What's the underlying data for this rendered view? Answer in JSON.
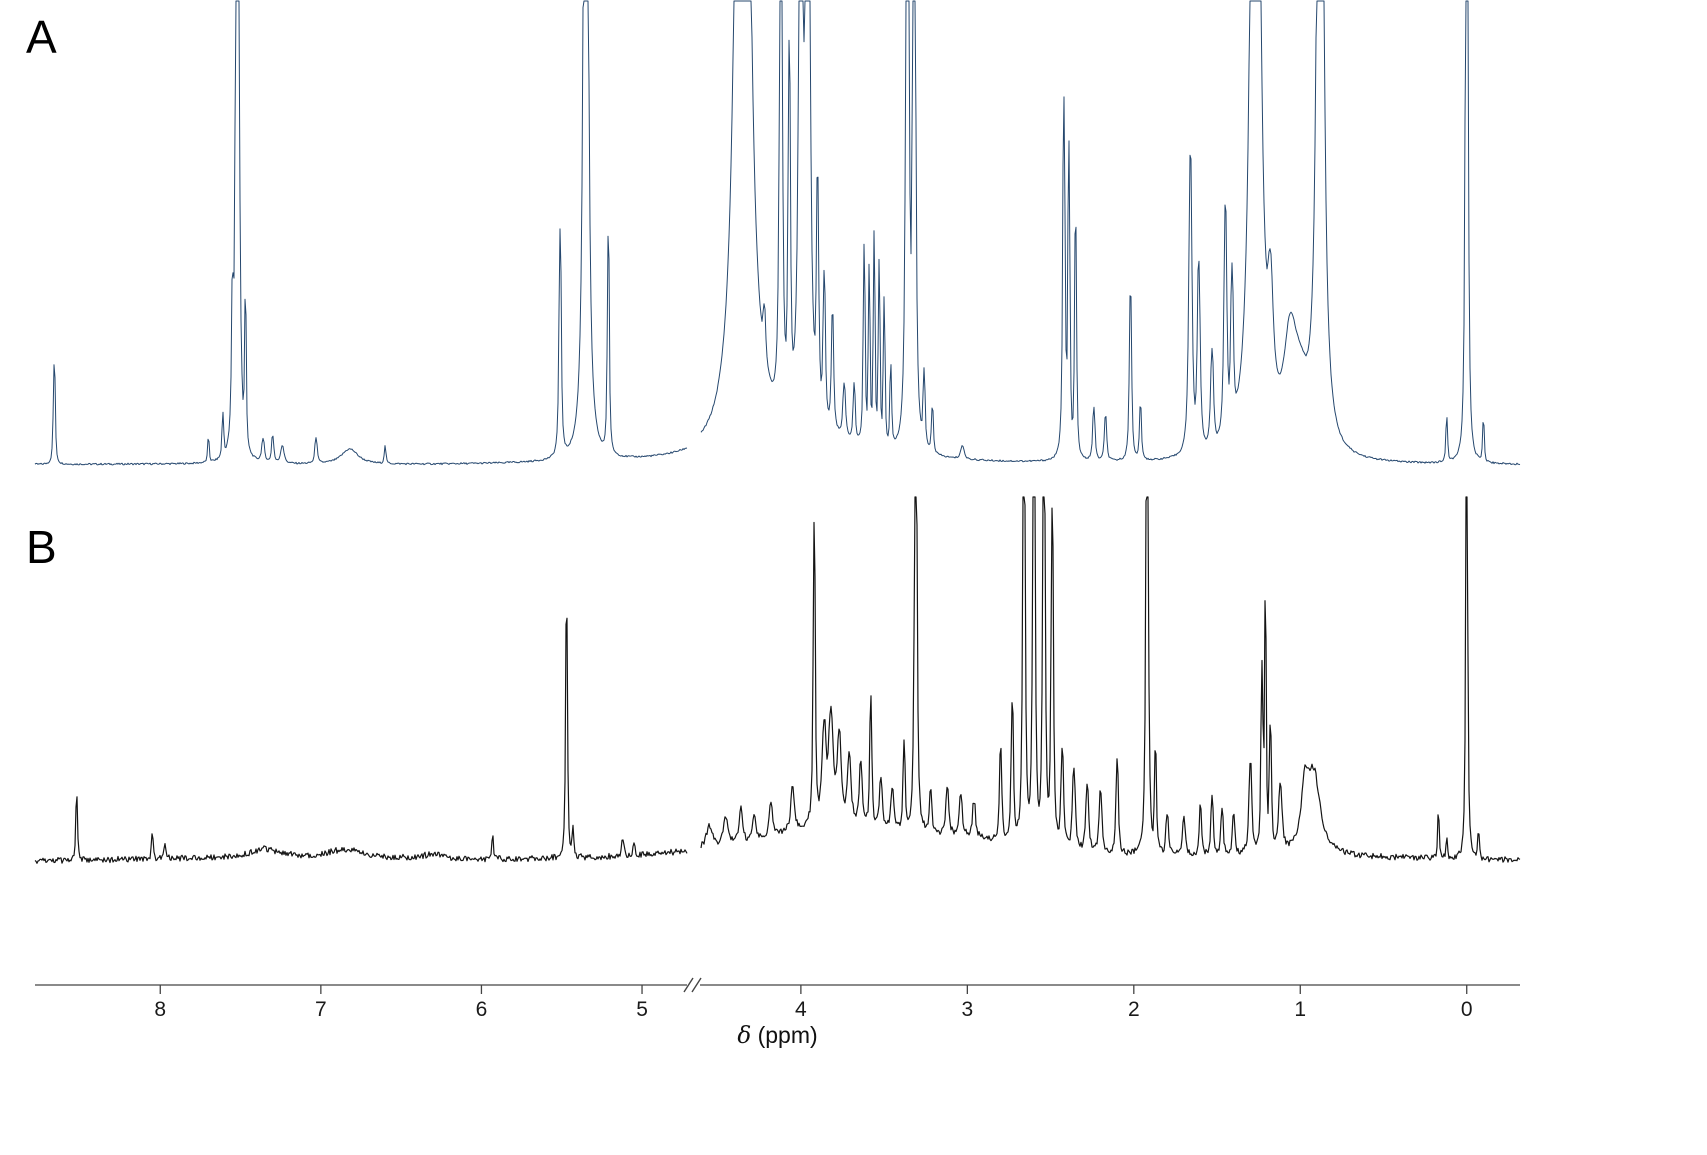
{
  "figure": {
    "panel_a_label": "A",
    "panel_b_label": "B"
  },
  "chart_data": {
    "type": "line",
    "kind": "stacked-1H-NMR-spectra",
    "title": "",
    "xlabel": "δ (ppm)",
    "xlabel_symbol": "δ",
    "xlabel_rest": " (ppm)",
    "ylabel": "",
    "grid": false,
    "legend": "none",
    "x_axis": {
      "reversed": true,
      "break_ppm": 4.66,
      "segments": [
        {
          "ppm_start": 8.78,
          "ppm_end": 4.72,
          "ticks": [
            8,
            7,
            6,
            5
          ]
        },
        {
          "ppm_start": 4.6,
          "ppm_end": -0.32,
          "ticks": [
            4,
            3,
            2,
            1,
            0
          ]
        }
      ]
    },
    "series": [
      {
        "name": "A",
        "color": "#25476e",
        "noise": 0.002,
        "peaks": [
          [
            8.66,
            0.23,
            0.005
          ],
          [
            7.7,
            0.05,
            0.004
          ],
          [
            7.61,
            0.1,
            0.004
          ],
          [
            7.55,
            0.28,
            0.005
          ],
          [
            7.52,
            3.0,
            0.007
          ],
          [
            7.47,
            0.32,
            0.004
          ],
          [
            7.36,
            0.05,
            0.008
          ],
          [
            7.3,
            0.06,
            0.006
          ],
          [
            7.24,
            0.04,
            0.01
          ],
          [
            7.03,
            0.06,
            0.006
          ],
          [
            6.82,
            0.035,
            0.06
          ],
          [
            6.6,
            0.04,
            0.004
          ],
          [
            5.51,
            0.52,
            0.006
          ],
          [
            5.35,
            3.0,
            0.011
          ],
          [
            5.21,
            0.5,
            0.005
          ],
          [
            4.35,
            4.0,
            0.03
          ],
          [
            4.22,
            0.12,
            0.008
          ],
          [
            4.12,
            1.5,
            0.007
          ],
          [
            4.07,
            0.8,
            0.006
          ],
          [
            4.0,
            2.6,
            0.008
          ],
          [
            3.96,
            3.0,
            0.009
          ],
          [
            3.9,
            0.5,
            0.006
          ],
          [
            3.86,
            0.33,
            0.006
          ],
          [
            3.81,
            0.26,
            0.006
          ],
          [
            3.9,
            0.05,
            0.4
          ],
          [
            3.74,
            0.12,
            0.007
          ],
          [
            3.68,
            0.13,
            0.005
          ],
          [
            3.62,
            0.45,
            0.0045
          ],
          [
            3.59,
            0.4,
            0.004
          ],
          [
            3.56,
            0.48,
            0.004
          ],
          [
            3.53,
            0.42,
            0.004
          ],
          [
            3.5,
            0.34,
            0.004
          ],
          [
            3.46,
            0.18,
            0.004
          ],
          [
            3.36,
            2.8,
            0.006
          ],
          [
            3.32,
            2.4,
            0.006
          ],
          [
            3.26,
            0.17,
            0.005
          ],
          [
            3.21,
            0.1,
            0.005
          ],
          [
            3.03,
            0.03,
            0.01
          ],
          [
            2.42,
            0.82,
            0.006
          ],
          [
            2.39,
            0.7,
            0.005
          ],
          [
            2.35,
            0.52,
            0.005
          ],
          [
            2.24,
            0.12,
            0.006
          ],
          [
            2.17,
            0.1,
            0.006
          ],
          [
            2.02,
            0.38,
            0.006
          ],
          [
            1.96,
            0.12,
            0.005
          ],
          [
            1.66,
            0.68,
            0.009
          ],
          [
            1.61,
            0.42,
            0.008
          ],
          [
            1.53,
            0.22,
            0.008
          ],
          [
            1.45,
            0.52,
            0.008
          ],
          [
            1.41,
            0.35,
            0.007
          ],
          [
            1.27,
            3.2,
            0.022
          ],
          [
            1.18,
            0.26,
            0.018
          ],
          [
            1.06,
            0.22,
            0.045
          ],
          [
            1.0,
            0.12,
            0.06
          ],
          [
            0.88,
            2.6,
            0.017
          ],
          [
            0.12,
            0.1,
            0.004
          ],
          [
            0.0,
            2.8,
            0.005
          ],
          [
            -0.1,
            0.09,
            0.004
          ]
        ]
      },
      {
        "name": "B",
        "color": "#141414",
        "noise": 0.01,
        "peaks": [
          [
            8.52,
            0.22,
            0.004
          ],
          [
            8.05,
            0.09,
            0.004
          ],
          [
            7.97,
            0.05,
            0.004
          ],
          [
            7.35,
            0.028,
            0.1
          ],
          [
            6.85,
            0.028,
            0.12
          ],
          [
            6.3,
            0.015,
            0.08
          ],
          [
            5.93,
            0.08,
            0.004
          ],
          [
            5.47,
            0.8,
            0.005
          ],
          [
            5.43,
            0.1,
            0.004
          ],
          [
            5.12,
            0.05,
            0.006
          ],
          [
            5.05,
            0.04,
            0.006
          ],
          [
            4.55,
            0.07,
            0.02
          ],
          [
            4.45,
            0.09,
            0.015
          ],
          [
            4.36,
            0.11,
            0.01
          ],
          [
            4.28,
            0.09,
            0.008
          ],
          [
            4.18,
            0.11,
            0.01
          ],
          [
            4.05,
            0.14,
            0.01
          ],
          [
            3.92,
            1.0,
            0.005
          ],
          [
            3.86,
            0.3,
            0.012
          ],
          [
            3.82,
            0.34,
            0.015
          ],
          [
            3.77,
            0.28,
            0.012
          ],
          [
            3.8,
            0.1,
            0.5
          ],
          [
            3.71,
            0.22,
            0.01
          ],
          [
            3.64,
            0.2,
            0.008
          ],
          [
            3.58,
            0.42,
            0.005
          ],
          [
            3.52,
            0.16,
            0.008
          ],
          [
            3.45,
            0.14,
            0.008
          ],
          [
            3.38,
            0.3,
            0.005
          ],
          [
            3.31,
            1.8,
            0.006
          ],
          [
            3.22,
            0.14,
            0.006
          ],
          [
            3.12,
            0.16,
            0.008
          ],
          [
            3.04,
            0.14,
            0.008
          ],
          [
            3.0,
            0.05,
            0.5
          ],
          [
            2.96,
            0.12,
            0.008
          ],
          [
            2.8,
            0.3,
            0.006
          ],
          [
            2.73,
            0.45,
            0.006
          ],
          [
            2.66,
            1.6,
            0.006
          ],
          [
            2.6,
            1.7,
            0.006
          ],
          [
            2.54,
            1.6,
            0.006
          ],
          [
            2.49,
            1.1,
            0.006
          ],
          [
            2.43,
            0.32,
            0.007
          ],
          [
            2.36,
            0.26,
            0.008
          ],
          [
            2.28,
            0.22,
            0.008
          ],
          [
            2.2,
            0.2,
            0.008
          ],
          [
            2.1,
            0.32,
            0.006
          ],
          [
            1.92,
            1.8,
            0.006
          ],
          [
            1.87,
            0.32,
            0.005
          ],
          [
            1.8,
            0.14,
            0.006
          ],
          [
            1.7,
            0.12,
            0.008
          ],
          [
            1.6,
            0.16,
            0.006
          ],
          [
            1.53,
            0.2,
            0.006
          ],
          [
            1.47,
            0.16,
            0.006
          ],
          [
            1.4,
            0.14,
            0.006
          ],
          [
            1.3,
            0.3,
            0.008
          ],
          [
            1.23,
            0.6,
            0.005
          ],
          [
            1.21,
            0.8,
            0.004
          ],
          [
            1.18,
            0.4,
            0.006
          ],
          [
            1.12,
            0.22,
            0.01
          ],
          [
            0.92,
            0.26,
            0.045
          ],
          [
            0.97,
            0.18,
            0.025
          ],
          [
            0.17,
            0.14,
            0.004
          ],
          [
            0.12,
            0.06,
            0.004
          ],
          [
            0.0,
            1.4,
            0.005
          ],
          [
            -0.07,
            0.08,
            0.004
          ]
        ]
      }
    ]
  }
}
